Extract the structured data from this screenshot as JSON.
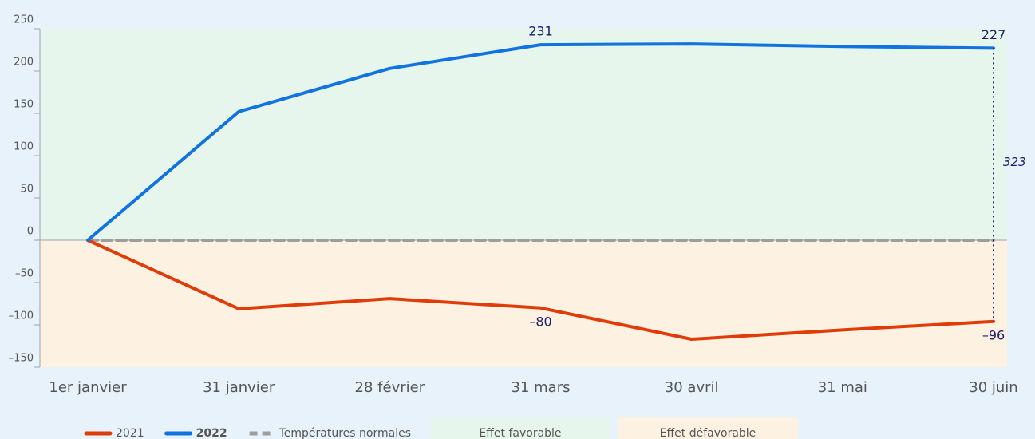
{
  "chart_data": {
    "type": "line",
    "categories": [
      "1er janvier",
      "31 janvier",
      "28 février",
      "31 mars",
      "30 avril",
      "31 mai",
      "30 juin"
    ],
    "series": [
      {
        "name": "2021",
        "color": "#e03c0a",
        "values": [
          0,
          -81,
          -69,
          -80,
          -117,
          -106,
          -96
        ],
        "value_labels": [
          null,
          null,
          null,
          "–80",
          null,
          null,
          "–96"
        ]
      },
      {
        "name": "2022",
        "color": "#1173e0",
        "bold": true,
        "values": [
          0,
          152,
          203,
          231,
          232,
          229,
          227
        ],
        "value_labels": [
          null,
          null,
          null,
          "231",
          null,
          null,
          "227"
        ]
      },
      {
        "name": "Températures normales",
        "color": "#9e9e9e",
        "dashed": true,
        "values": [
          0,
          0,
          0,
          0,
          0,
          0,
          0
        ]
      }
    ],
    "difference_label": "323",
    "regions": [
      {
        "name": "Effet favorable",
        "color": "#e6f6ec",
        "side": "above"
      },
      {
        "name": "Effet défavorable",
        "color": "#fdf2e2",
        "side": "below"
      }
    ],
    "ylim": [
      -150,
      250
    ],
    "yticks": [
      {
        "value": -150,
        "label": "–150"
      },
      {
        "value": -100,
        "label": "–100"
      },
      {
        "value": -50,
        "label": "–50"
      },
      0,
      50,
      100,
      150,
      200,
      250
    ]
  }
}
